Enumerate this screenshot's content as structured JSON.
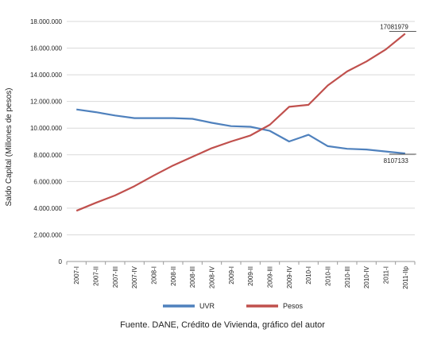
{
  "chart_data": {
    "type": "line",
    "ylabel": "Saldo Capital (Millones de pesos)",
    "xlabel": "",
    "ylim": [
      0,
      18000000
    ],
    "yticks": [
      0,
      2000000,
      4000000,
      6000000,
      8000000,
      10000000,
      12000000,
      14000000,
      16000000,
      18000000
    ],
    "ytick_labels": [
      "0",
      "2.000.000",
      "4.000.000",
      "6.000.000",
      "8.000.000",
      "10.000.000",
      "12.000.000",
      "14.000.000",
      "16.000.000",
      "18.000.000"
    ],
    "grid": true,
    "legend_position": "bottom",
    "categories": [
      "2007-I",
      "2007-II",
      "2007-III",
      "2007-IV",
      "2008-I",
      "2008-II",
      "2008-III",
      "2008-IV",
      "2009-I",
      "2009-II",
      "2009-III",
      "2009-IV",
      "2010-I",
      "2010-II",
      "2010-III",
      "2010-IV",
      "2011-I",
      "2011-IIp"
    ],
    "series": [
      {
        "name": "UVR",
        "color": "#4f81bd",
        "values": [
          11400000,
          11200000,
          10950000,
          10750000,
          10750000,
          10750000,
          10700000,
          10400000,
          10150000,
          10100000,
          9800000,
          9000000,
          9500000,
          8650000,
          8450000,
          8400000,
          8250000,
          8107133
        ]
      },
      {
        "name": "Pesos",
        "color": "#c0504d",
        "values": [
          3800000,
          4400000,
          4950000,
          5650000,
          6450000,
          7200000,
          7850000,
          8500000,
          9000000,
          9450000,
          10250000,
          11600000,
          11750000,
          13200000,
          14250000,
          15000000,
          15900000,
          17081979
        ]
      }
    ],
    "annotations": [
      {
        "text": "17081979",
        "series": "Pesos",
        "category": "2011-IIp"
      },
      {
        "text": "8107133",
        "series": "UVR",
        "category": "2011-IIp"
      }
    ]
  },
  "caption": "Fuente. DANE, Crédito de Vivienda, gráfico del autor"
}
